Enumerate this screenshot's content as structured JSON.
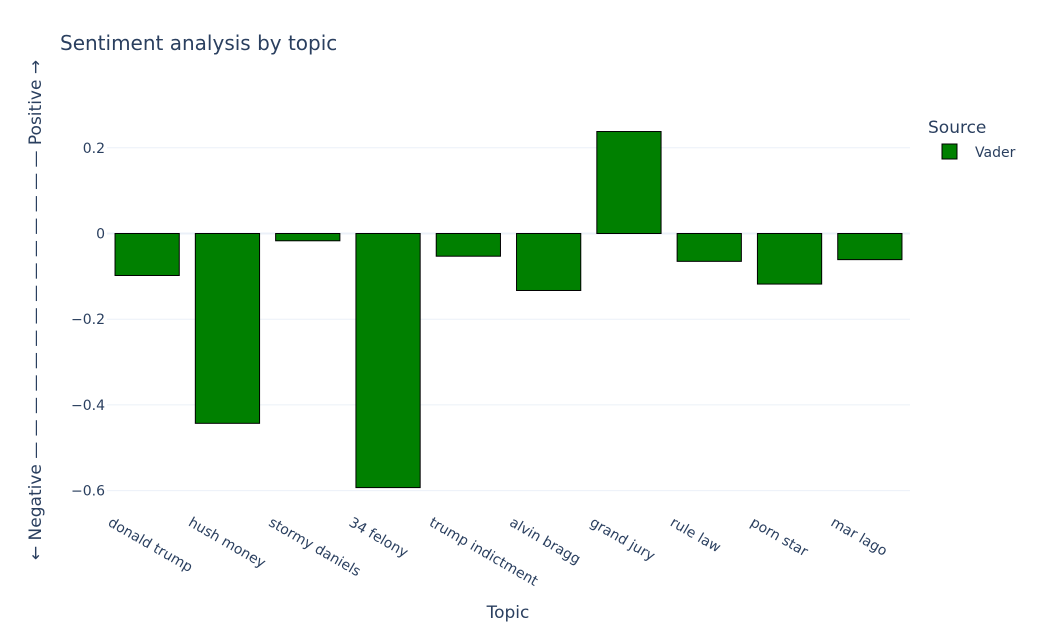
{
  "chart_data": {
    "type": "bar",
    "title": "Sentiment analysis by topic",
    "xlabel": "Topic",
    "ylabel": "← Negative — — — — — — — — — — — — — — Positive →",
    "categories": [
      "donald trump",
      "hush money",
      "stormy daniels",
      "34 felony",
      "trump indictment",
      "alvin bragg",
      "grand jury",
      "rule law",
      "porn star",
      "mar lago"
    ],
    "series": [
      {
        "name": "Vader",
        "color": "#008000",
        "values": [
          -0.098,
          -0.443,
          -0.017,
          -0.593,
          -0.053,
          -0.133,
          0.238,
          -0.065,
          -0.118,
          -0.061
        ]
      }
    ],
    "ylim": [
      -0.65,
      0.335
    ],
    "yticks": [
      0.2,
      0,
      -0.2,
      -0.4,
      -0.6
    ],
    "ytick_labels": [
      "0.2",
      "0",
      "−0.2",
      "−0.4",
      "−0.6"
    ],
    "grid": true,
    "legend": {
      "title": "Source",
      "placement": "top-right"
    }
  }
}
